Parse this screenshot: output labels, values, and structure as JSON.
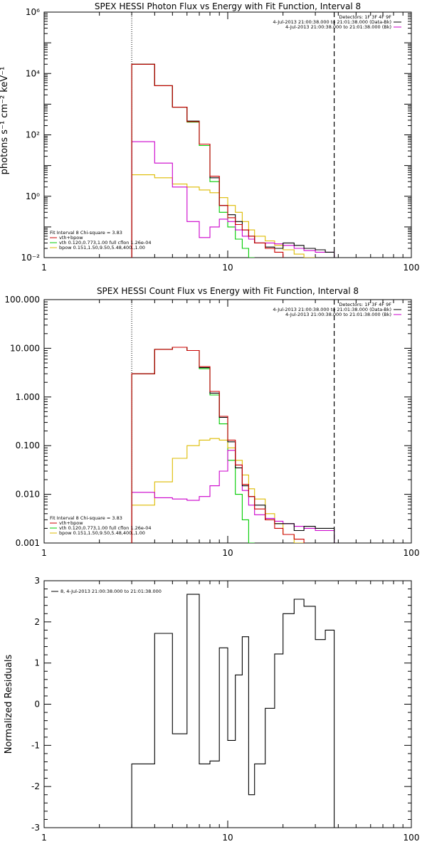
{
  "colors": {
    "data": "#000000",
    "fit_total": "#cc0000",
    "background": "#cc00cc",
    "vth": "#00cc00",
    "bpow": "#ddbb00",
    "residual": "#000000"
  },
  "chart_data": [
    {
      "type": "line",
      "title": "SPEX HESSI Photon Flux vs Energy with Fit Function, Interval 8",
      "xlabel": "",
      "ylabel": "photons s⁻¹ cm⁻² keV⁻¹",
      "xscale": "log",
      "yscale": "log",
      "xlim": [
        1,
        100
      ],
      "ylim": [
        0.01,
        1000000
      ],
      "xticks": [
        1,
        10,
        100
      ],
      "xtick_labels": [
        "1",
        "10",
        "100"
      ],
      "yticks": [
        0.01,
        1,
        100,
        10000,
        1000000
      ],
      "ytick_labels": [
        "10⁻²",
        "10⁰",
        "10²",
        "10⁴",
        "10⁶"
      ],
      "vlines": [
        3,
        38
      ],
      "edges": [
        3,
        4,
        5,
        6,
        7,
        8,
        9,
        10,
        11,
        12,
        13,
        14,
        16,
        18,
        20,
        23,
        26,
        30,
        34,
        38
      ],
      "legend_top": [
        "Detectors: 1F 3F 4F 9F",
        "4-Jul-2013 21:00:38.000 to 21:01:38.000 (Data-Bk)",
        "4-Jul-2013 21:00:38.000 to 21:01:38.000 (Bk)"
      ],
      "legend_bottom": [
        "Fit Interval 8   Chi-square = 3.83",
        "vth+bpow",
        "vth 0.120,0.773,1.00  full cflon 1.26e-04",
        "bpow 0.151,1.50,9.50,5.48,400.,1.00"
      ],
      "series": [
        {
          "name": "4-Jul-2013 21:00:38.000 to 21:01:38.000 (Data-Bk)",
          "role": "data",
          "values": [
            20000,
            4000,
            800,
            280,
            50,
            4,
            0.5,
            0.25,
            0.15,
            0.08,
            0.05,
            0.03,
            0.022,
            0.02,
            0.03,
            0.025,
            0.02,
            0.018,
            0.015
          ]
        },
        {
          "name": "vth+bpow",
          "role": "fit_total",
          "values": [
            20000,
            4000,
            800,
            270,
            50,
            4.5,
            0.5,
            0.2,
            0.12,
            0.08,
            0.05,
            0.03,
            0.02,
            0.015
          ]
        },
        {
          "name": "vth 0.120,0.773,1.00  full cflon 1.26e-04",
          "role": "vth",
          "values": [
            20000,
            4000,
            800,
            260,
            45,
            3,
            0.3,
            0.1,
            0.04,
            0.02,
            0.01
          ]
        },
        {
          "name": "bpow 0.151,1.50,9.50,5.48,400.,1.00",
          "role": "bpow",
          "values": [
            5,
            4,
            2.5,
            2,
            1.6,
            1.3,
            0.9,
            0.5,
            0.3,
            0.15,
            0.08,
            0.05,
            0.035,
            0.025,
            0.018,
            0.013,
            0.01
          ]
        },
        {
          "name": "4-Jul-2013 21:00:38.000 to 21:01:38.000 (Bk)",
          "role": "background",
          "values": [
            60,
            12,
            2,
            0.15,
            0.045,
            0.1,
            0.18,
            0.15,
            0.08,
            0.05,
            0.04,
            0.03,
            0.03,
            0.028,
            0.025,
            0.02,
            0.017,
            0.015,
            0.015
          ]
        }
      ]
    },
    {
      "type": "line",
      "title": "SPEX HESSI Count Flux vs Energy with Fit Function, Interval 8",
      "xlabel": "",
      "ylabel": "",
      "xscale": "log",
      "yscale": "log",
      "xlim": [
        1,
        100
      ],
      "ylim": [
        0.001,
        100
      ],
      "xticks": [
        1,
        10,
        100
      ],
      "xtick_labels": [
        "1",
        "10",
        "100"
      ],
      "yticks": [
        0.001,
        0.01,
        0.1,
        1,
        10,
        100
      ],
      "ytick_labels": [
        "0.001",
        "0.010",
        "0.100",
        "1.000",
        "10.000",
        "100.000"
      ],
      "vlines": [
        3,
        38
      ],
      "edges": [
        3,
        4,
        5,
        6,
        7,
        8,
        9,
        10,
        11,
        12,
        13,
        14,
        16,
        18,
        20,
        23,
        26,
        30,
        34,
        38
      ],
      "legend_top": [
        "Detectors: 1F 3F 4F 9F",
        "4-Jul-2013 21:00:38.000 to 21:01:38.000 (Data-Bk)",
        "4-Jul-2013 21:00:38.000 to 21:01:38.000 (Bk)"
      ],
      "legend_bottom": [
        "Fit Interval 8   Chi-square = 3.83",
        "vth+bpow",
        "vth 0.120,0.773,1.00  full cflon 1.26e-04",
        "bpow 0.151,1.50,9.50,5.48,400.,1.00"
      ],
      "series": [
        {
          "name": "4-Jul-2013 21:00:38.000 to 21:01:38.000 (Data-Bk)",
          "role": "data",
          "values": [
            3,
            9.5,
            10.5,
            9,
            4,
            1.2,
            0.38,
            0.12,
            0.035,
            0.015,
            0.009,
            0.006,
            0.003,
            0.0025,
            0.0025,
            0.0018,
            0.0022,
            0.002,
            0.002
          ]
        },
        {
          "name": "vth+bpow",
          "role": "fit_total",
          "values": [
            3,
            9.5,
            10.5,
            9,
            4.2,
            1.3,
            0.4,
            0.13,
            0.04,
            0.016,
            0.009,
            0.005,
            0.003,
            0.002,
            0.0015,
            0.0012
          ]
        },
        {
          "name": "vth 0.120,0.773,1.00  full cflon 1.26e-04",
          "role": "vth",
          "values": [
            3,
            9.5,
            10.5,
            9,
            3.8,
            1.1,
            0.28,
            0.05,
            0.01,
            0.003,
            0.001
          ]
        },
        {
          "name": "bpow 0.151,1.50,9.50,5.48,400.,1.00",
          "role": "bpow",
          "values": [
            0.006,
            0.018,
            0.055,
            0.1,
            0.13,
            0.14,
            0.13,
            0.09,
            0.05,
            0.025,
            0.013,
            0.008,
            0.004,
            0.0025,
            0.0015,
            0.001
          ]
        },
        {
          "name": "4-Jul-2013 21:00:38.000 to 21:01:38.000 (Bk)",
          "role": "background",
          "values": [
            0.011,
            0.0085,
            0.008,
            0.0075,
            0.009,
            0.015,
            0.03,
            0.08,
            0.04,
            0.012,
            0.006,
            0.0038,
            0.0032,
            0.0028,
            0.0025,
            0.0022,
            0.002,
            0.0018,
            0.0018
          ]
        }
      ]
    },
    {
      "type": "line",
      "title": "",
      "xlabel": "",
      "ylabel": "Normalized Residuals",
      "xscale": "log",
      "yscale": "linear",
      "xlim": [
        1,
        100
      ],
      "ylim": [
        -3,
        3
      ],
      "xticks": [
        1,
        10,
        100
      ],
      "xtick_labels": [
        "1",
        "10",
        "100"
      ],
      "yticks": [
        -3,
        -2,
        -1,
        0,
        1,
        2,
        3
      ],
      "ytick_labels": [
        "-3",
        "-2",
        "-1",
        "0",
        "1",
        "2",
        "3"
      ],
      "edges": [
        3,
        4,
        5,
        6,
        7,
        8,
        9,
        10,
        11,
        12,
        13,
        14,
        16,
        18,
        20,
        23,
        26,
        30,
        34,
        38
      ],
      "legend_top": [
        "8,  4-Jul-2013 21:00:38.000 to 21:01:38.000"
      ],
      "series": [
        {
          "name": "8,  4-Jul-2013 21:00:38.000 to 21:01:38.000",
          "role": "residual",
          "values": [
            -1.45,
            1.72,
            -0.72,
            2.67,
            -1.45,
            -1.38,
            1.37,
            -0.88,
            0.71,
            1.64,
            -2.2,
            -1.45,
            -0.1,
            1.22,
            2.2,
            2.55,
            2.38,
            1.57,
            1.8
          ]
        }
      ]
    }
  ]
}
